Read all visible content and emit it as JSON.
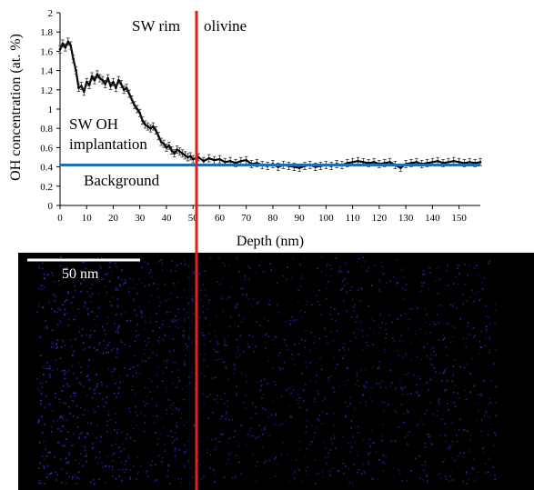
{
  "chart_data": {
    "type": "line",
    "title": "",
    "xlabel": "Depth (nm)",
    "ylabel": "OH concentration (at. %)",
    "xlim": [
      0,
      158
    ],
    "ylim": [
      0,
      2
    ],
    "x_ticks": [
      "0",
      "10",
      "20",
      "30",
      "40",
      "50",
      "60",
      "70",
      "80",
      "90",
      "100",
      "110",
      "120",
      "130",
      "140",
      "150"
    ],
    "y_ticks": [
      "0",
      "0.2",
      "0.4",
      "0.6",
      "0.8",
      "1",
      "1.2",
      "1.4",
      "1.6",
      "1.8",
      "2"
    ],
    "grid": false,
    "legend": "none",
    "series": [
      {
        "color": "#000000",
        "error_bars": true,
        "points": [
          [
            0,
            1.62
          ],
          [
            1,
            1.68
          ],
          [
            2,
            1.64
          ],
          [
            3,
            1.7
          ],
          [
            4,
            1.66
          ],
          [
            5,
            1.52
          ],
          [
            6,
            1.4
          ],
          [
            7,
            1.22
          ],
          [
            8,
            1.24
          ],
          [
            9,
            1.18
          ],
          [
            10,
            1.28
          ],
          [
            11,
            1.25
          ],
          [
            12,
            1.34
          ],
          [
            13,
            1.3
          ],
          [
            14,
            1.36
          ],
          [
            15,
            1.32
          ],
          [
            16,
            1.3
          ],
          [
            17,
            1.26
          ],
          [
            18,
            1.32
          ],
          [
            19,
            1.24
          ],
          [
            20,
            1.28
          ],
          [
            21,
            1.22
          ],
          [
            22,
            1.3
          ],
          [
            23,
            1.26
          ],
          [
            24,
            1.2
          ],
          [
            25,
            1.22
          ],
          [
            26,
            1.16
          ],
          [
            27,
            1.1
          ],
          [
            28,
            1.04
          ],
          [
            29,
            1.0
          ],
          [
            30,
            0.96
          ],
          [
            31,
            0.88
          ],
          [
            32,
            0.84
          ],
          [
            33,
            0.82
          ],
          [
            34,
            0.8
          ],
          [
            35,
            0.82
          ],
          [
            36,
            0.78
          ],
          [
            37,
            0.72
          ],
          [
            38,
            0.66
          ],
          [
            39,
            0.64
          ],
          [
            40,
            0.6
          ],
          [
            41,
            0.62
          ],
          [
            42,
            0.57
          ],
          [
            43,
            0.54
          ],
          [
            44,
            0.58
          ],
          [
            45,
            0.56
          ],
          [
            46,
            0.54
          ],
          [
            47,
            0.52
          ],
          [
            48,
            0.5
          ],
          [
            49,
            0.51
          ],
          [
            50,
            0.48
          ],
          [
            52,
            0.5
          ],
          [
            54,
            0.46
          ],
          [
            56,
            0.49
          ],
          [
            58,
            0.47
          ],
          [
            60,
            0.48
          ],
          [
            62,
            0.45
          ],
          [
            64,
            0.46
          ],
          [
            66,
            0.44
          ],
          [
            68,
            0.46
          ],
          [
            70,
            0.47
          ],
          [
            72,
            0.43
          ],
          [
            74,
            0.44
          ],
          [
            76,
            0.42
          ],
          [
            78,
            0.41
          ],
          [
            80,
            0.43
          ],
          [
            82,
            0.4
          ],
          [
            84,
            0.42
          ],
          [
            86,
            0.41
          ],
          [
            88,
            0.4
          ],
          [
            90,
            0.39
          ],
          [
            92,
            0.41
          ],
          [
            94,
            0.42
          ],
          [
            96,
            0.4
          ],
          [
            98,
            0.41
          ],
          [
            100,
            0.42
          ],
          [
            102,
            0.41
          ],
          [
            104,
            0.43
          ],
          [
            106,
            0.42
          ],
          [
            108,
            0.44
          ],
          [
            110,
            0.45
          ],
          [
            112,
            0.46
          ],
          [
            114,
            0.45
          ],
          [
            116,
            0.44
          ],
          [
            118,
            0.45
          ],
          [
            120,
            0.43
          ],
          [
            122,
            0.44
          ],
          [
            124,
            0.45
          ],
          [
            126,
            0.42
          ],
          [
            128,
            0.39
          ],
          [
            130,
            0.43
          ],
          [
            132,
            0.44
          ],
          [
            134,
            0.45
          ],
          [
            136,
            0.43
          ],
          [
            138,
            0.44
          ],
          [
            140,
            0.45
          ],
          [
            142,
            0.46
          ],
          [
            144,
            0.44
          ],
          [
            146,
            0.45
          ],
          [
            148,
            0.46
          ],
          [
            150,
            0.45
          ],
          [
            152,
            0.44
          ],
          [
            154,
            0.45
          ],
          [
            156,
            0.44
          ],
          [
            158,
            0.45
          ]
        ]
      }
    ],
    "reference_lines": [
      {
        "label": "Background",
        "orientation": "horizontal",
        "y": 0.42,
        "color": "#1f6fb6"
      },
      {
        "orientation": "vertical",
        "x": 51,
        "color": "#e02020"
      }
    ],
    "annotations": [
      {
        "text": "SW rim",
        "position": "top, left of red line"
      },
      {
        "text": "olivine",
        "position": "top, right of red line"
      },
      {
        "text": "SW OH",
        "position": "above background line, left"
      },
      {
        "text": "implantation",
        "position": "above background line, left"
      },
      {
        "text": "Background",
        "position": "below background line, left"
      }
    ]
  },
  "image_panel": {
    "background_color": "#000000",
    "dot_color": "#2a3cf0",
    "scale_bar": {
      "label": "50 nm",
      "color": "#ffffff"
    }
  }
}
